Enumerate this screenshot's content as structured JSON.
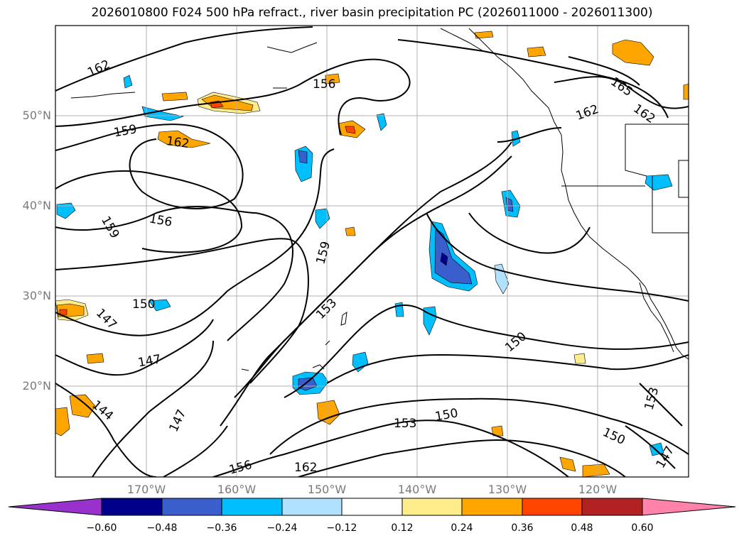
{
  "title": "2026010800 F024 500 hPa refract., river basin precipitation PC (2026011000 - 2026011300)",
  "lat_labels": [
    "50°N",
    "40°N",
    "30°N",
    "20°N"
  ],
  "lon_labels": [
    "170°W",
    "160°W",
    "150°W",
    "140°W",
    "130°W",
    "120°W"
  ],
  "contour_labels": [
    "162",
    "156",
    "159",
    "162",
    "159",
    "156",
    "147",
    "150",
    "147",
    "144",
    "147",
    "156",
    "162",
    "159",
    "153",
    "153",
    "150",
    "150",
    "165",
    "162",
    "162",
    "153",
    "150",
    "147"
  ],
  "colorbar": {
    "ticks": [
      "−0.60",
      "−0.48",
      "−0.36",
      "−0.24",
      "−0.12",
      "0.12",
      "0.24",
      "0.36",
      "0.48",
      "0.60"
    ],
    "colors": [
      "#9932cc",
      "#00008b",
      "#3a5fcd",
      "#00bfff",
      "#b0e2ff",
      "#ffffff",
      "#ffec8b",
      "#ffa500",
      "#ff4500",
      "#b22222",
      "#ff82ab"
    ]
  },
  "colors": {
    "contour": "#000000",
    "grid": "#b0b0b0",
    "label": "#7a7a7a"
  }
}
